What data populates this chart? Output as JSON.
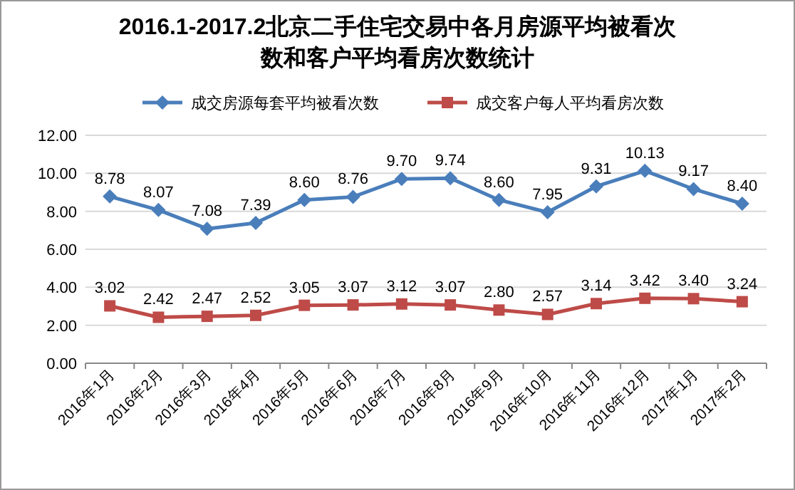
{
  "chart_data": {
    "type": "line",
    "title": "2016.1-2017.2北京二手住宅交易中各月房源平均被看次数和客户平均看房次数统计",
    "categories": [
      "2016年1月",
      "2016年2月",
      "2016年3月",
      "2016年4月",
      "2016年5月",
      "2016年6月",
      "2016年7月",
      "2016年8月",
      "2016年9月",
      "2016年10月",
      "2016年11月",
      "2016年12月",
      "2017年1月",
      "2017年2月"
    ],
    "series": [
      {
        "name": "成交房源每套平均被看次数",
        "color": "#4a7ebb",
        "marker": "diamond",
        "values": [
          8.78,
          8.07,
          7.08,
          7.39,
          8.6,
          8.76,
          9.7,
          9.74,
          8.6,
          7.95,
          9.31,
          10.13,
          9.17,
          8.4
        ],
        "value_labels": [
          "8.78",
          "8.07",
          "7.08",
          "7.39",
          "8.60",
          "8.76",
          "9.70",
          "9.74",
          "8.60",
          "7.95",
          "9.31",
          "10.13",
          "9.17",
          "8.40"
        ]
      },
      {
        "name": "成交客户每人平均看房次数",
        "color": "#be4b48",
        "marker": "square",
        "values": [
          3.02,
          2.42,
          2.47,
          2.52,
          3.05,
          3.07,
          3.12,
          3.07,
          2.8,
          2.57,
          3.14,
          3.42,
          3.4,
          3.24
        ],
        "value_labels": [
          "3.02",
          "2.42",
          "2.47",
          "2.52",
          "3.05",
          "3.07",
          "3.12",
          "3.07",
          "2.80",
          "2.57",
          "3.14",
          "3.42",
          "3.40",
          "3.24"
        ]
      }
    ],
    "ylim": [
      0,
      12
    ],
    "yticks": [
      {
        "value": 0,
        "label": "0.00"
      },
      {
        "value": 2,
        "label": "2.00"
      },
      {
        "value": 4,
        "label": "4.00"
      },
      {
        "value": 6,
        "label": "6.00"
      },
      {
        "value": 8,
        "label": "8.00"
      },
      {
        "value": 10,
        "label": "10.00"
      },
      {
        "value": 12,
        "label": "12.00"
      }
    ],
    "grid": "y",
    "legend": "top",
    "line_style": "solid"
  }
}
